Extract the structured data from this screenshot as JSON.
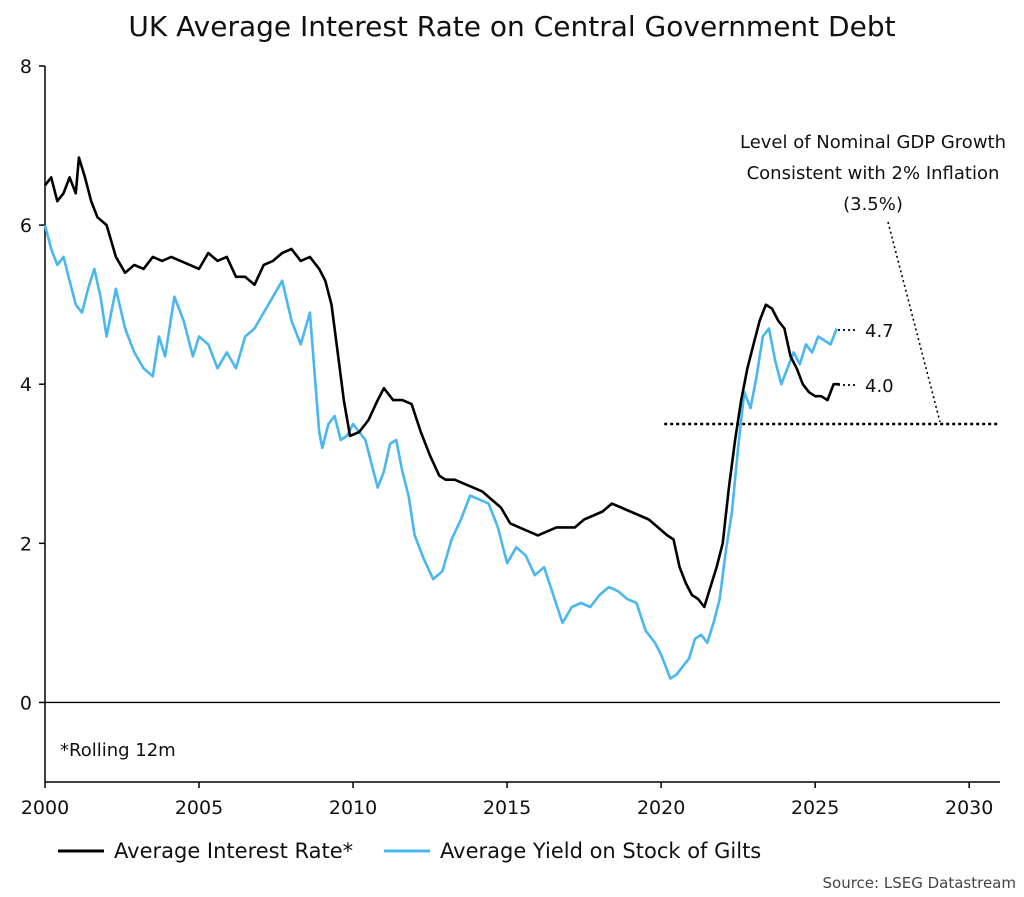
{
  "chart_data": {
    "type": "line",
    "title": "UK Average Interest Rate on Central Government Debt",
    "xlim": [
      2000,
      2031
    ],
    "ylim": [
      -1,
      8
    ],
    "x_ticks": [
      2000,
      2005,
      2010,
      2015,
      2020,
      2025,
      2030
    ],
    "y_ticks": [
      0,
      2,
      4,
      6,
      8
    ],
    "grid": false,
    "legend_position": "bottom",
    "series": [
      {
        "name": "Average Interest Rate*",
        "color": "#000000",
        "x": [
          2000.0,
          2000.2,
          2000.4,
          2000.6,
          2000.8,
          2001.0,
          2001.1,
          2001.3,
          2001.5,
          2001.7,
          2002.0,
          2002.3,
          2002.6,
          2002.9,
          2003.2,
          2003.5,
          2003.8,
          2004.1,
          2004.4,
          2004.7,
          2005.0,
          2005.3,
          2005.6,
          2005.9,
          2006.2,
          2006.5,
          2006.8,
          2007.1,
          2007.4,
          2007.7,
          2008.0,
          2008.3,
          2008.6,
          2008.9,
          2009.1,
          2009.3,
          2009.5,
          2009.7,
          2009.9,
          2010.2,
          2010.5,
          2010.8,
          2011.0,
          2011.3,
          2011.6,
          2011.9,
          2012.2,
          2012.5,
          2012.8,
          2013.0,
          2013.3,
          2013.6,
          2013.9,
          2014.2,
          2014.5,
          2014.8,
          2015.1,
          2015.4,
          2015.7,
          2016.0,
          2016.3,
          2016.6,
          2016.9,
          2017.2,
          2017.5,
          2017.8,
          2018.1,
          2018.4,
          2018.7,
          2019.0,
          2019.3,
          2019.6,
          2019.9,
          2020.2,
          2020.4,
          2020.6,
          2020.8,
          2021.0,
          2021.2,
          2021.4,
          2021.6,
          2021.8,
          2022.0,
          2022.2,
          2022.4,
          2022.6,
          2022.8,
          2023.0,
          2023.2,
          2023.4,
          2023.6,
          2023.8,
          2024.0,
          2024.2,
          2024.4,
          2024.6,
          2024.8,
          2025.0,
          2025.2,
          2025.4,
          2025.6,
          2025.8
        ],
        "y": [
          6.5,
          6.6,
          6.3,
          6.4,
          6.6,
          6.4,
          6.85,
          6.6,
          6.3,
          6.1,
          6.0,
          5.6,
          5.4,
          5.5,
          5.45,
          5.6,
          5.55,
          5.6,
          5.55,
          5.5,
          5.45,
          5.65,
          5.55,
          5.6,
          5.35,
          5.35,
          5.25,
          5.5,
          5.55,
          5.65,
          5.7,
          5.55,
          5.6,
          5.45,
          5.3,
          5.0,
          4.4,
          3.8,
          3.35,
          3.4,
          3.55,
          3.8,
          3.95,
          3.8,
          3.8,
          3.75,
          3.4,
          3.1,
          2.85,
          2.8,
          2.8,
          2.75,
          2.7,
          2.65,
          2.55,
          2.45,
          2.25,
          2.2,
          2.15,
          2.1,
          2.15,
          2.2,
          2.2,
          2.2,
          2.3,
          2.35,
          2.4,
          2.5,
          2.45,
          2.4,
          2.35,
          2.3,
          2.2,
          2.1,
          2.05,
          1.7,
          1.5,
          1.35,
          1.3,
          1.2,
          1.45,
          1.7,
          2.0,
          2.7,
          3.3,
          3.8,
          4.2,
          4.5,
          4.8,
          5.0,
          4.95,
          4.8,
          4.7,
          4.35,
          4.2,
          4.0,
          3.9,
          3.85,
          3.85,
          3.8,
          4.0,
          4.0
        ]
      },
      {
        "name": "Average Yield on Stock of Gilts",
        "color": "#4ab7f0",
        "x": [
          2000.0,
          2000.2,
          2000.4,
          2000.6,
          2000.8,
          2001.0,
          2001.2,
          2001.4,
          2001.6,
          2001.8,
          2002.0,
          2002.3,
          2002.6,
          2002.9,
          2003.2,
          2003.5,
          2003.7,
          2003.9,
          2004.2,
          2004.5,
          2004.8,
          2005.0,
          2005.3,
          2005.6,
          2005.9,
          2006.2,
          2006.5,
          2006.8,
          2007.1,
          2007.4,
          2007.7,
          2008.0,
          2008.3,
          2008.6,
          2008.9,
          2009.0,
          2009.2,
          2009.4,
          2009.6,
          2009.8,
          2010.0,
          2010.2,
          2010.4,
          2010.6,
          2010.8,
          2011.0,
          2011.2,
          2011.4,
          2011.6,
          2011.8,
          2012.0,
          2012.3,
          2012.6,
          2012.9,
          2013.2,
          2013.5,
          2013.8,
          2014.1,
          2014.4,
          2014.7,
          2015.0,
          2015.3,
          2015.6,
          2015.9,
          2016.2,
          2016.5,
          2016.8,
          2017.1,
          2017.4,
          2017.7,
          2018.0,
          2018.3,
          2018.6,
          2018.9,
          2019.2,
          2019.5,
          2019.8,
          2020.0,
          2020.3,
          2020.5,
          2020.7,
          2020.9,
          2021.1,
          2021.3,
          2021.5,
          2021.7,
          2021.9,
          2022.1,
          2022.3,
          2022.5,
          2022.7,
          2022.9,
          2023.1,
          2023.3,
          2023.5,
          2023.7,
          2023.9,
          2024.1,
          2024.3,
          2024.5,
          2024.7,
          2024.9,
          2025.1,
          2025.3,
          2025.5,
          2025.7
        ],
        "y": [
          6.0,
          5.7,
          5.5,
          5.6,
          5.3,
          5.0,
          4.9,
          5.2,
          5.45,
          5.1,
          4.6,
          5.2,
          4.7,
          4.4,
          4.2,
          4.1,
          4.6,
          4.35,
          5.1,
          4.8,
          4.35,
          4.6,
          4.5,
          4.2,
          4.4,
          4.2,
          4.6,
          4.7,
          4.9,
          5.1,
          5.3,
          4.8,
          4.5,
          4.9,
          3.4,
          3.2,
          3.5,
          3.6,
          3.3,
          3.35,
          3.5,
          3.4,
          3.3,
          3.0,
          2.7,
          2.9,
          3.25,
          3.3,
          2.9,
          2.6,
          2.1,
          1.8,
          1.55,
          1.65,
          2.05,
          2.3,
          2.6,
          2.55,
          2.5,
          2.2,
          1.75,
          1.95,
          1.85,
          1.6,
          1.7,
          1.35,
          1.0,
          1.2,
          1.25,
          1.2,
          1.35,
          1.45,
          1.4,
          1.3,
          1.25,
          0.9,
          0.75,
          0.6,
          0.3,
          0.35,
          0.45,
          0.55,
          0.8,
          0.85,
          0.75,
          1.0,
          1.3,
          1.9,
          2.4,
          3.2,
          3.9,
          3.7,
          4.1,
          4.6,
          4.7,
          4.3,
          4.0,
          4.2,
          4.4,
          4.25,
          4.5,
          4.4,
          4.6,
          4.55,
          4.5,
          4.7
        ]
      }
    ],
    "reference_line": {
      "y": 3.5,
      "x_start": 2020.1,
      "x_end": 2031,
      "style": "dotted"
    },
    "annotations": {
      "gdp_line1": "Level of Nominal GDP Growth",
      "gdp_line2": "Consistent with 2% Inflation",
      "gdp_line3": "(3.5%)",
      "label_gilt": "4.7",
      "label_rate": "4.0",
      "footnote": "*Rolling 12m"
    },
    "source": "Source: LSEG Datastream"
  }
}
